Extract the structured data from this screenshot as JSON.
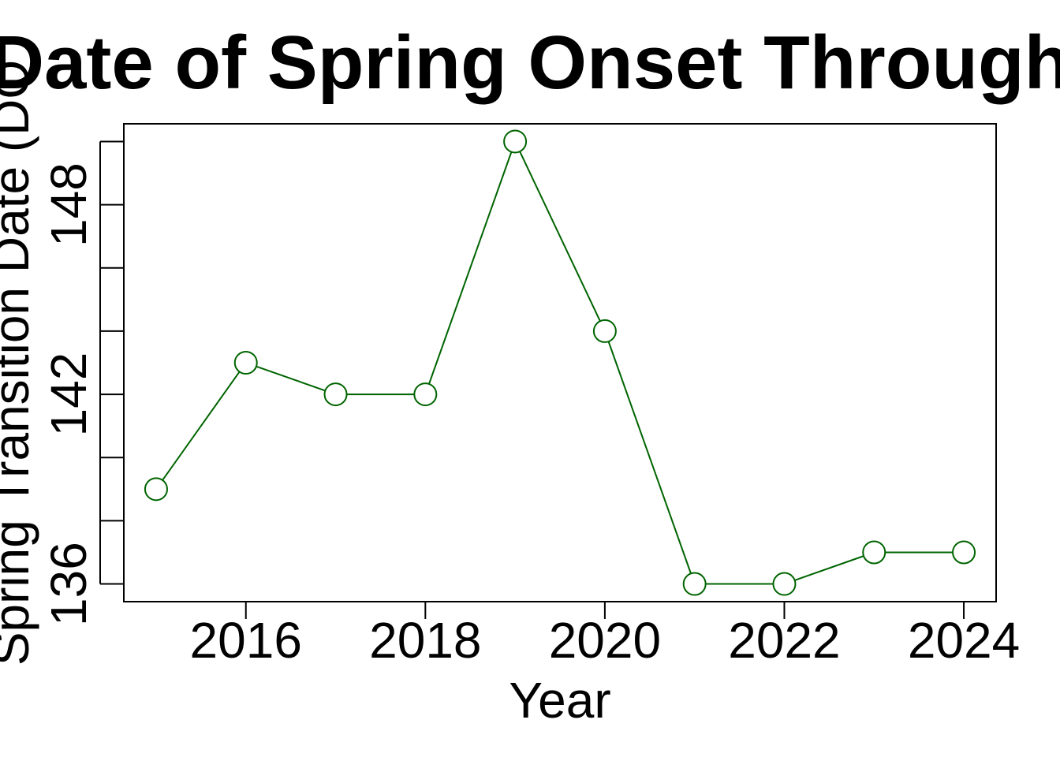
{
  "chart_data": {
    "type": "line",
    "title": "Date of Spring Onset Through",
    "xlabel": "Year",
    "ylabel": "Spring Transition Date (DO",
    "x": [
      2015,
      2016,
      2017,
      2018,
      2019,
      2020,
      2021,
      2022,
      2023,
      2024
    ],
    "series": [
      {
        "values": [
          139,
          143,
          142,
          142,
          150,
          144,
          136,
          136,
          137,
          137
        ]
      }
    ],
    "xticks": [
      "2016",
      "2018",
      "2020",
      "2022",
      "2024"
    ],
    "yticks": [
      "136",
      "142",
      "148"
    ],
    "xlim": [
      2014.64,
      2024.36
    ],
    "ylim": [
      135.44,
      150.56
    ],
    "grid": false,
    "legend": "none",
    "line_color": "#006400",
    "marker": "open-circle"
  }
}
